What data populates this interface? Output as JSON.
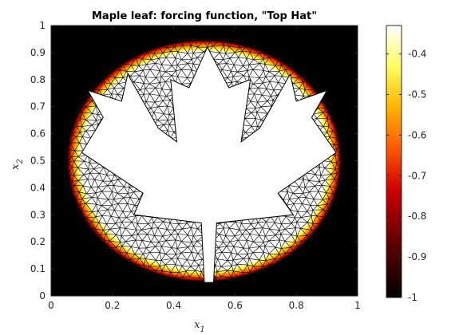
{
  "chart_data": {
    "type": "heatmap",
    "title": "Maple leaf: forcing function, \"Top Hat\"",
    "xlabel": "x",
    "xlabel_sub": "1",
    "ylabel": "x",
    "ylabel_sub": "2",
    "xlim": [
      0,
      1
    ],
    "ylim": [
      0,
      1
    ],
    "xticks": [
      0,
      0.2,
      0.4,
      0.6,
      0.8,
      1
    ],
    "xtick_labels": [
      "0",
      "0.2",
      "0.4",
      "0.6",
      "0.8",
      "1"
    ],
    "yticks": [
      0,
      0.1,
      0.2,
      0.3,
      0.4,
      0.5,
      0.6,
      0.7,
      0.8,
      0.9,
      1
    ],
    "ytick_labels": [
      "0",
      "0.1",
      "0.2",
      "0.3",
      "0.4",
      "0.5",
      "0.6",
      "0.7",
      "0.8",
      "0.9",
      "1"
    ],
    "colorbar": {
      "colormap": "hot",
      "range": [
        -1,
        -0.33
      ],
      "ticks": [
        -1,
        -0.9,
        -0.8,
        -0.7,
        -0.6,
        -0.5,
        -0.4
      ],
      "tick_labels": [
        "-1",
        "-0.9",
        "-0.8",
        "-0.7",
        "-0.6",
        "-0.5",
        "-0.4"
      ]
    },
    "domain": {
      "outer_boundary": "circle",
      "center": [
        0.5,
        0.5
      ],
      "radius": 0.47,
      "hole": "maple leaf",
      "background_value": -1,
      "ring_value": -0.33,
      "mesh": "triangular"
    },
    "maple_leaf_outline": [
      [
        0.51,
        0.92
      ],
      [
        0.58,
        0.77
      ],
      [
        0.65,
        0.8
      ],
      [
        0.62,
        0.57
      ],
      [
        0.68,
        0.62
      ],
      [
        0.78,
        0.82
      ],
      [
        0.8,
        0.72
      ],
      [
        0.9,
        0.76
      ],
      [
        0.85,
        0.66
      ],
      [
        0.93,
        0.53
      ],
      [
        0.74,
        0.38
      ],
      [
        0.79,
        0.3
      ],
      [
        0.54,
        0.27
      ],
      [
        0.53,
        0.05
      ],
      [
        0.5,
        0.05
      ],
      [
        0.49,
        0.27
      ],
      [
        0.27,
        0.3
      ],
      [
        0.3,
        0.38
      ],
      [
        0.1,
        0.53
      ],
      [
        0.17,
        0.66
      ],
      [
        0.12,
        0.76
      ],
      [
        0.23,
        0.72
      ],
      [
        0.25,
        0.82
      ],
      [
        0.35,
        0.62
      ],
      [
        0.41,
        0.57
      ],
      [
        0.39,
        0.8
      ],
      [
        0.45,
        0.77
      ]
    ]
  }
}
